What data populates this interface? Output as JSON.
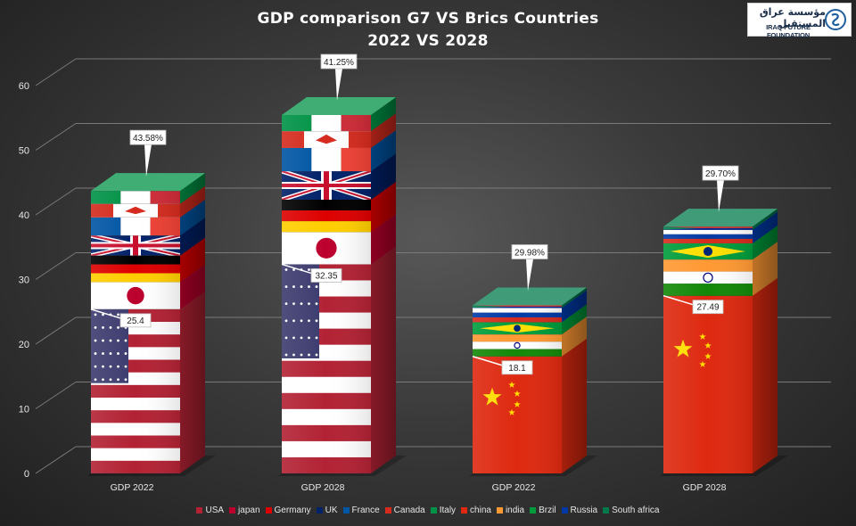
{
  "title_line1": "GDP comparison G7 VS Brics Countries",
  "title_line2": "2022 VS 2028",
  "logo": {
    "arabic": "مؤسسة عراق المستقبل",
    "english": "IRAQ FUTURE FOUNDATION"
  },
  "chart_data": {
    "type": "bar",
    "subtype": "stacked 3D columns",
    "title": "GDP comparison G7 VS Brics Countries",
    "subtitle": "2022 VS 2028",
    "categories": [
      "GDP 2022",
      "GDP 2028",
      "GDP 2022",
      "GDP 2028"
    ],
    "ylim": [
      0,
      60
    ],
    "yticks": [
      0,
      10,
      20,
      30,
      40,
      50,
      60
    ],
    "grid": true,
    "legend_position": "bottom",
    "groups": [
      {
        "category": "GDP 2022",
        "segments": [
          {
            "series": "USA",
            "value": 25.4
          },
          {
            "series": "japan",
            "value": 4.2
          },
          {
            "series": "Germany",
            "value": 4.1
          },
          {
            "series": "UK",
            "value": 3.1
          },
          {
            "series": "France",
            "value": 2.8
          },
          {
            "series": "Canada",
            "value": 2.1
          },
          {
            "series": "Italy",
            "value": 2.0
          }
        ],
        "total": 43.7,
        "share_label": "43.58%",
        "marked_value_label": "25.4"
      },
      {
        "category": "GDP 2028",
        "segments": [
          {
            "series": "USA",
            "value": 32.35
          },
          {
            "series": "japan",
            "value": 5.0
          },
          {
            "series": "Germany",
            "value": 5.0
          },
          {
            "series": "UK",
            "value": 4.4
          },
          {
            "series": "France",
            "value": 3.6
          },
          {
            "series": "Canada",
            "value": 2.6
          },
          {
            "series": "Italy",
            "value": 2.5
          }
        ],
        "total": 55.45,
        "share_label": "41.25%",
        "marked_value_label": "32.35"
      },
      {
        "category": "GDP 2022",
        "segments": [
          {
            "series": "china",
            "value": 18.1
          },
          {
            "series": "india",
            "value": 3.4
          },
          {
            "series": "Brzil",
            "value": 1.9
          },
          {
            "series": "Russia",
            "value": 2.2
          },
          {
            "series": "South africa",
            "value": 0.4
          }
        ],
        "total": 26.0,
        "share_label": "29.98%",
        "marked_value_label": "18.1"
      },
      {
        "category": "GDP 2028",
        "segments": [
          {
            "series": "china",
            "value": 27.49
          },
          {
            "series": "india",
            "value": 5.6
          },
          {
            "series": "Brzil",
            "value": 2.5
          },
          {
            "series": "Russia",
            "value": 2.1
          },
          {
            "series": "South africa",
            "value": 0.5
          }
        ],
        "total": 38.2,
        "share_label": "29.70%",
        "marked_value_label": "27.49"
      }
    ],
    "series": [
      {
        "name": "USA",
        "color": "#b22234"
      },
      {
        "name": "japan",
        "color": "#bc002d"
      },
      {
        "name": "Germany",
        "color": "#dd0000"
      },
      {
        "name": "UK",
        "color": "#012169"
      },
      {
        "name": "France",
        "color": "#0055a4"
      },
      {
        "name": "Canada",
        "color": "#d52b1e"
      },
      {
        "name": "Italy",
        "color": "#009246"
      },
      {
        "name": "china",
        "color": "#de2910"
      },
      {
        "name": "india",
        "color": "#ff9933"
      },
      {
        "name": "Brzil",
        "color": "#009c3b"
      },
      {
        "name": "Russia",
        "color": "#0039a6"
      },
      {
        "name": "South africa",
        "color": "#007a4d"
      }
    ]
  }
}
